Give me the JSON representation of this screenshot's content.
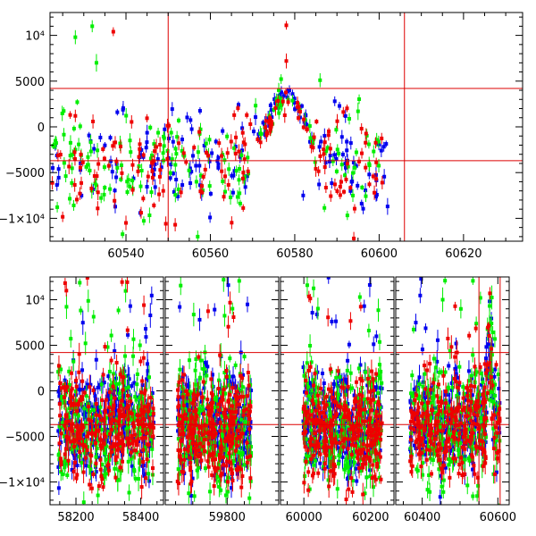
{
  "chart_data": [
    {
      "type": "scatter",
      "title": "",
      "xlabel": "",
      "ylabel": "",
      "xlim": [
        60522,
        60634
      ],
      "ylim": [
        -12500,
        12500
      ],
      "x_ticks": [
        60540,
        60560,
        60580,
        60600,
        60620
      ],
      "y_ticks": [
        {
          "value": 10000,
          "label": "10⁴"
        },
        {
          "value": 5000,
          "label": "5000"
        },
        {
          "value": 0,
          "label": "0"
        },
        {
          "value": -5000,
          "label": "−5000"
        },
        {
          "value": -10000,
          "label": "−1×10⁴"
        }
      ],
      "reference_lines": {
        "horizontal": [
          4200,
          -3700
        ],
        "vertical": [
          60550,
          60606
        ]
      },
      "reference_line_color": "#dd0000",
      "series": [
        {
          "color": "#0000ee",
          "x_range": [
            60522,
            60602
          ],
          "y_center": -3600,
          "y_spread": 2600,
          "flare": {
            "peak_x": 60578,
            "width": 6,
            "amplitude": 7000
          },
          "outliers": [
            [
              60546,
              -4300
            ],
            [
              60582,
              -7500
            ],
            [
              60602,
              -8700
            ]
          ]
        },
        {
          "color": "#00ee00",
          "x_range": [
            60522,
            60600
          ],
          "y_center": -3800,
          "y_spread": 3000,
          "flare": {
            "peak_x": 60578,
            "width": 6,
            "amplitude": 7000
          },
          "outliers": [
            [
              60528,
              9800
            ],
            [
              60532,
              11000
            ],
            [
              60533,
              7000
            ],
            [
              60586,
              5100
            ],
            [
              60595,
              1700
            ],
            [
              60557,
              -12000
            ]
          ]
        },
        {
          "color": "#ee0000",
          "x_range": [
            60522,
            60602
          ],
          "y_center": -3800,
          "y_spread": 3000,
          "flare": {
            "peak_x": 60578,
            "width": 6,
            "amplitude": 7000
          },
          "outliers": [
            [
              60537,
              10400
            ],
            [
              60528,
              1200
            ],
            [
              60578,
              11100
            ],
            [
              60578,
              7200
            ],
            [
              60594,
              -12200
            ],
            [
              60540,
              -10500
            ]
          ]
        }
      ]
    },
    {
      "type": "scatter",
      "title": "",
      "xlabel": "",
      "ylabel": "",
      "broken_x_axis": true,
      "segments": [
        {
          "xlim": [
            58120,
            58470
          ],
          "x_ticks": [
            58200,
            58400
          ],
          "data_x": [
            58145,
            58440
          ]
        },
        {
          "xlim": [
            59620,
            59950
          ],
          "x_ticks": [
            59800
          ],
          "data_x": [
            59655,
            59870
          ]
        },
        {
          "xlim": [
            59930,
            60270
          ],
          "x_ticks": [
            60000,
            60200
          ],
          "data_x": [
            59998,
            60235
          ]
        },
        {
          "xlim": [
            60330,
            60630
          ],
          "x_ticks": [
            60400,
            60600
          ],
          "data_x": [
            60368,
            60605
          ]
        }
      ],
      "ylim": [
        -12500,
        12500
      ],
      "y_ticks": [
        {
          "value": 10000,
          "label": "10⁴"
        },
        {
          "value": 5000,
          "label": "5000"
        },
        {
          "value": 0,
          "label": "0"
        },
        {
          "value": -5000,
          "label": "−5000"
        },
        {
          "value": -10000,
          "label": "−1×10⁴"
        }
      ],
      "reference_lines": {
        "horizontal": [
          4200,
          -3700
        ],
        "vertical": [
          60550,
          60606
        ]
      },
      "reference_line_color": "#dd0000",
      "series": [
        {
          "color": "#0000ee",
          "y_center": -3500,
          "y_spread": 2800
        },
        {
          "color": "#00ee00",
          "y_center": -3800,
          "y_spread": 3200
        },
        {
          "color": "#ee0000",
          "y_center": -4000,
          "y_spread": 2900
        }
      ],
      "late_flare": {
        "peak_x": 60578,
        "width": 8,
        "amplitude": 9000
      }
    }
  ]
}
